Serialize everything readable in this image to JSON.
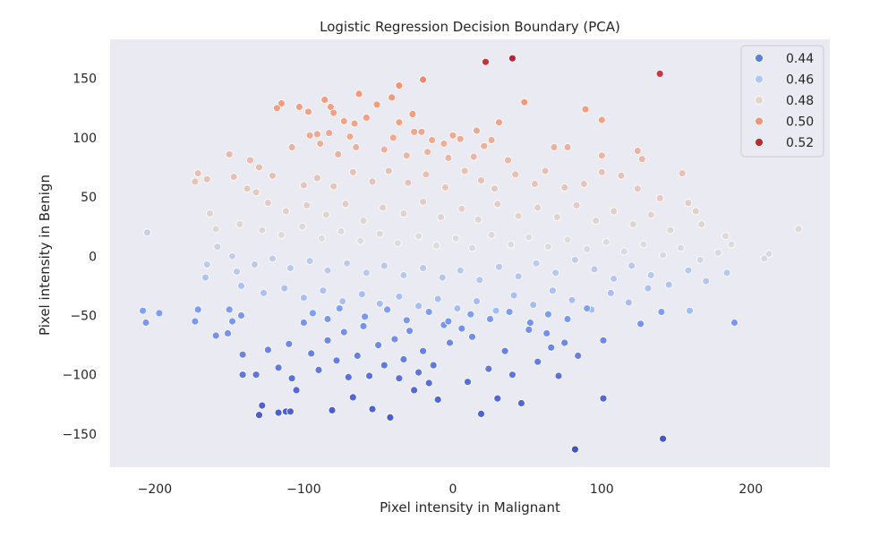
{
  "chart_data": {
    "type": "scatter",
    "title": "Logistic Regression Decision Boundary (PCA)",
    "xlabel": "Pixel intensity in Malignant",
    "ylabel": "Pixel intensity in Benign",
    "xlim": [
      -230,
      253
    ],
    "ylim": [
      -178,
      183
    ],
    "xticks": [
      -200,
      -100,
      0,
      100,
      200
    ],
    "yticks": [
      -150,
      -100,
      -50,
      0,
      50,
      100,
      150
    ],
    "xtick_labels": [
      "−200",
      "−100",
      "0",
      "100",
      "200"
    ],
    "ytick_labels": [
      "−150",
      "−100",
      "−50",
      "0",
      "50",
      "100",
      "150"
    ],
    "grid": false,
    "background": "#eaeaf2",
    "legend": {
      "placement": "top-right",
      "entries": [
        {
          "label": "0.44",
          "color": "#5b7ee0"
        },
        {
          "label": "0.46",
          "color": "#aec8f6"
        },
        {
          "label": "0.48",
          "color": "#e3d6cc"
        },
        {
          "label": "0.50",
          "color": "#e8967a"
        },
        {
          "label": "0.52",
          "color": "#b82b2e"
        }
      ]
    },
    "colormap": "coolwarm",
    "color_range": [
      0.425,
      0.53
    ],
    "points": [
      [
        22,
        164,
        0.522
      ],
      [
        40,
        167,
        0.525
      ],
      [
        139,
        154,
        0.521
      ],
      [
        -36,
        144,
        0.505
      ],
      [
        -20,
        149,
        0.507
      ],
      [
        -63,
        137,
        0.504
      ],
      [
        -115,
        129,
        0.503
      ],
      [
        -118,
        125,
        0.502
      ],
      [
        -103,
        126,
        0.502
      ],
      [
        -97,
        122,
        0.501
      ],
      [
        -86,
        132,
        0.503
      ],
      [
        -82,
        126,
        0.502
      ],
      [
        -80,
        121,
        0.501
      ],
      [
        -51,
        128,
        0.503
      ],
      [
        -41,
        134,
        0.504
      ],
      [
        -58,
        117,
        0.501
      ],
      [
        -73,
        114,
        0.5
      ],
      [
        -27,
        120,
        0.502
      ],
      [
        -36,
        113,
        0.501
      ],
      [
        -66,
        112,
        0.5
      ],
      [
        -83,
        104,
        0.499
      ],
      [
        -96,
        102,
        0.498
      ],
      [
        -91,
        103,
        0.498
      ],
      [
        -69,
        101,
        0.498
      ],
      [
        -40,
        100,
        0.498
      ],
      [
        -26,
        105,
        0.499
      ],
      [
        -21,
        105,
        0.499
      ],
      [
        -14,
        98,
        0.497
      ],
      [
        -6,
        95,
        0.496
      ],
      [
        0,
        102,
        0.498
      ],
      [
        5,
        99,
        0.497
      ],
      [
        16,
        106,
        0.499
      ],
      [
        26,
        98,
        0.497
      ],
      [
        31,
        113,
        0.5
      ],
      [
        48,
        130,
        0.504
      ],
      [
        89,
        124,
        0.503
      ],
      [
        100,
        115,
        0.501
      ],
      [
        -108,
        92,
        0.495
      ],
      [
        -89,
        95,
        0.496
      ],
      [
        -77,
        86,
        0.494
      ],
      [
        -65,
        92,
        0.495
      ],
      [
        -46,
        90,
        0.494
      ],
      [
        -31,
        85,
        0.493
      ],
      [
        -17,
        88,
        0.494
      ],
      [
        -3,
        83,
        0.493
      ],
      [
        14,
        84,
        0.493
      ],
      [
        21,
        93,
        0.495
      ],
      [
        37,
        81,
        0.492
      ],
      [
        68,
        92,
        0.495
      ],
      [
        77,
        92,
        0.495
      ],
      [
        100,
        85,
        0.493
      ],
      [
        124,
        89,
        0.494
      ],
      [
        127,
        82,
        0.492
      ],
      [
        -150,
        86,
        0.492
      ],
      [
        -136,
        81,
        0.491
      ],
      [
        -130,
        75,
        0.49
      ],
      [
        -171,
        70,
        0.489
      ],
      [
        -173,
        63,
        0.488
      ],
      [
        -165,
        65,
        0.488
      ],
      [
        -147,
        67,
        0.488
      ],
      [
        -138,
        57,
        0.486
      ],
      [
        -132,
        54,
        0.486
      ],
      [
        -121,
        68,
        0.489
      ],
      [
        -100,
        60,
        0.487
      ],
      [
        -91,
        66,
        0.488
      ],
      [
        -80,
        59,
        0.487
      ],
      [
        -67,
        71,
        0.489
      ],
      [
        -54,
        63,
        0.488
      ],
      [
        -43,
        72,
        0.489
      ],
      [
        -30,
        62,
        0.488
      ],
      [
        -18,
        69,
        0.489
      ],
      [
        -5,
        58,
        0.486
      ],
      [
        8,
        72,
        0.489
      ],
      [
        19,
        64,
        0.488
      ],
      [
        28,
        57,
        0.486
      ],
      [
        42,
        69,
        0.489
      ],
      [
        55,
        61,
        0.487
      ],
      [
        62,
        72,
        0.489
      ],
      [
        75,
        58,
        0.487
      ],
      [
        88,
        61,
        0.487
      ],
      [
        100,
        71,
        0.489
      ],
      [
        113,
        68,
        0.488
      ],
      [
        124,
        57,
        0.486
      ],
      [
        139,
        49,
        0.485
      ],
      [
        154,
        70,
        0.489
      ],
      [
        158,
        45,
        0.484
      ],
      [
        163,
        38,
        0.483
      ],
      [
        167,
        27,
        0.481
      ],
      [
        -124,
        45,
        0.484
      ],
      [
        -112,
        38,
        0.483
      ],
      [
        -98,
        43,
        0.484
      ],
      [
        -85,
        35,
        0.482
      ],
      [
        -72,
        44,
        0.484
      ],
      [
        -60,
        30,
        0.481
      ],
      [
        -47,
        41,
        0.483
      ],
      [
        -33,
        36,
        0.482
      ],
      [
        -20,
        46,
        0.484
      ],
      [
        -8,
        33,
        0.482
      ],
      [
        6,
        40,
        0.483
      ],
      [
        17,
        31,
        0.481
      ],
      [
        30,
        44,
        0.484
      ],
      [
        44,
        34,
        0.482
      ],
      [
        57,
        41,
        0.483
      ],
      [
        70,
        33,
        0.482
      ],
      [
        83,
        43,
        0.484
      ],
      [
        96,
        30,
        0.481
      ],
      [
        108,
        38,
        0.483
      ],
      [
        121,
        27,
        0.481
      ],
      [
        133,
        35,
        0.482
      ],
      [
        146,
        22,
        0.48
      ],
      [
        183,
        17,
        0.479
      ],
      [
        187,
        10,
        0.478
      ],
      [
        232,
        23,
        0.48
      ],
      [
        212,
        2,
        0.476
      ],
      [
        209,
        -2,
        0.475
      ],
      [
        -163,
        36,
        0.482
      ],
      [
        -159,
        23,
        0.48
      ],
      [
        -143,
        27,
        0.481
      ],
      [
        -128,
        22,
        0.48
      ],
      [
        -115,
        18,
        0.479
      ],
      [
        -101,
        25,
        0.48
      ],
      [
        -88,
        15,
        0.478
      ],
      [
        -75,
        21,
        0.479
      ],
      [
        -62,
        13,
        0.478
      ],
      [
        -49,
        19,
        0.479
      ],
      [
        -37,
        11,
        0.477
      ],
      [
        -23,
        17,
        0.478
      ],
      [
        -11,
        9,
        0.477
      ],
      [
        2,
        15,
        0.478
      ],
      [
        13,
        7,
        0.476
      ],
      [
        26,
        18,
        0.479
      ],
      [
        39,
        10,
        0.477
      ],
      [
        51,
        16,
        0.478
      ],
      [
        64,
        8,
        0.477
      ],
      [
        77,
        14,
        0.478
      ],
      [
        90,
        6,
        0.476
      ],
      [
        103,
        12,
        0.477
      ],
      [
        115,
        4,
        0.476
      ],
      [
        128,
        10,
        0.477
      ],
      [
        141,
        1,
        0.476
      ],
      [
        153,
        7,
        0.476
      ],
      [
        166,
        -3,
        0.474
      ],
      [
        178,
        3,
        0.475
      ],
      [
        -158,
        8,
        0.471
      ],
      [
        -148,
        0,
        0.469
      ],
      [
        -165,
        -7,
        0.467
      ],
      [
        -145,
        -13,
        0.466
      ],
      [
        -133,
        -7,
        0.467
      ],
      [
        -121,
        -2,
        0.468
      ],
      [
        -109,
        -10,
        0.466
      ],
      [
        -96,
        -4,
        0.467
      ],
      [
        -84,
        -12,
        0.466
      ],
      [
        -71,
        -6,
        0.467
      ],
      [
        -58,
        -14,
        0.465
      ],
      [
        -46,
        -8,
        0.466
      ],
      [
        -33,
        -16,
        0.465
      ],
      [
        -20,
        -10,
        0.466
      ],
      [
        -7,
        -18,
        0.464
      ],
      [
        5,
        -12,
        0.465
      ],
      [
        18,
        -20,
        0.464
      ],
      [
        31,
        -9,
        0.466
      ],
      [
        44,
        -17,
        0.464
      ],
      [
        56,
        -6,
        0.467
      ],
      [
        69,
        -14,
        0.465
      ],
      [
        82,
        -3,
        0.468
      ],
      [
        95,
        -11,
        0.466
      ],
      [
        108,
        -19,
        0.464
      ],
      [
        120,
        -8,
        0.466
      ],
      [
        133,
        -16,
        0.465
      ],
      [
        145,
        -24,
        0.463
      ],
      [
        158,
        -12,
        0.465
      ],
      [
        170,
        -21,
        0.464
      ],
      [
        184,
        -14,
        0.465
      ],
      [
        -166,
        -18,
        0.463
      ],
      [
        -142,
        -25,
        0.462
      ],
      [
        -127,
        -31,
        0.461
      ],
      [
        -113,
        -27,
        0.461
      ],
      [
        -100,
        -35,
        0.46
      ],
      [
        -87,
        -29,
        0.461
      ],
      [
        -74,
        -38,
        0.46
      ],
      [
        -61,
        -32,
        0.46
      ],
      [
        -49,
        -40,
        0.459
      ],
      [
        -36,
        -34,
        0.46
      ],
      [
        -23,
        -42,
        0.459
      ],
      [
        -10,
        -36,
        0.46
      ],
      [
        3,
        -44,
        0.459
      ],
      [
        16,
        -38,
        0.459
      ],
      [
        29,
        -46,
        0.458
      ],
      [
        41,
        -33,
        0.46
      ],
      [
        54,
        -41,
        0.459
      ],
      [
        67,
        -29,
        0.461
      ],
      [
        80,
        -37,
        0.46
      ],
      [
        93,
        -45,
        0.458
      ],
      [
        106,
        -31,
        0.46
      ],
      [
        118,
        -39,
        0.459
      ],
      [
        131,
        -27,
        0.461
      ],
      [
        159,
        -46,
        0.458
      ],
      [
        -205,
        20,
        0.47
      ],
      [
        -208,
        -46,
        0.447
      ],
      [
        -206,
        -56,
        0.445
      ],
      [
        -197,
        -48,
        0.446
      ],
      [
        -173,
        -55,
        0.445
      ],
      [
        -171,
        -45,
        0.446
      ],
      [
        -159,
        -67,
        0.443
      ],
      [
        -150,
        -45,
        0.446
      ],
      [
        -148,
        -55,
        0.445
      ],
      [
        -151,
        -65,
        0.444
      ],
      [
        -142,
        -50,
        0.445
      ],
      [
        -141,
        -100,
        0.436
      ],
      [
        -141,
        -83,
        0.44
      ],
      [
        -132,
        -100,
        0.436
      ],
      [
        -128,
        -126,
        0.431
      ],
      [
        -130,
        -134,
        0.43
      ],
      [
        -117,
        -132,
        0.43
      ],
      [
        -112,
        -131,
        0.43
      ],
      [
        -109,
        -131,
        0.43
      ],
      [
        -124,
        -79,
        0.44
      ],
      [
        -117,
        -94,
        0.437
      ],
      [
        -110,
        -74,
        0.441
      ],
      [
        -108,
        -103,
        0.435
      ],
      [
        -105,
        -113,
        0.433
      ],
      [
        -100,
        -56,
        0.444
      ],
      [
        -95,
        -82,
        0.439
      ],
      [
        -90,
        -96,
        0.437
      ],
      [
        -84,
        -71,
        0.441
      ],
      [
        -81,
        -130,
        0.43
      ],
      [
        -78,
        -88,
        0.438
      ],
      [
        -73,
        -64,
        0.443
      ],
      [
        -70,
        -102,
        0.435
      ],
      [
        -67,
        -119,
        0.432
      ],
      [
        -64,
        -84,
        0.439
      ],
      [
        -60,
        -59,
        0.444
      ],
      [
        -56,
        -101,
        0.435
      ],
      [
        -54,
        -129,
        0.431
      ],
      [
        -50,
        -75,
        0.441
      ],
      [
        -46,
        -92,
        0.437
      ],
      [
        -42,
        -136,
        0.43
      ],
      [
        -39,
        -70,
        0.442
      ],
      [
        -36,
        -103,
        0.435
      ],
      [
        -33,
        -87,
        0.438
      ],
      [
        -29,
        -63,
        0.443
      ],
      [
        -26,
        -113,
        0.433
      ],
      [
        -23,
        -98,
        0.436
      ],
      [
        -20,
        -80,
        0.439
      ],
      [
        -16,
        -107,
        0.434
      ],
      [
        -13,
        -92,
        0.437
      ],
      [
        -10,
        -121,
        0.432
      ],
      [
        -6,
        -58,
        0.444
      ],
      [
        -2,
        -73,
        0.441
      ],
      [
        6,
        -61,
        0.443
      ],
      [
        10,
        -106,
        0.434
      ],
      [
        13,
        -68,
        0.442
      ],
      [
        19,
        -133,
        0.431
      ],
      [
        24,
        -95,
        0.437
      ],
      [
        30,
        -120,
        0.432
      ],
      [
        35,
        -80,
        0.439
      ],
      [
        40,
        -100,
        0.436
      ],
      [
        46,
        -124,
        0.432
      ],
      [
        51,
        -62,
        0.443
      ],
      [
        57,
        -89,
        0.438
      ],
      [
        63,
        -65,
        0.443
      ],
      [
        66,
        -77,
        0.44
      ],
      [
        71,
        -101,
        0.435
      ],
      [
        75,
        -73,
        0.441
      ],
      [
        82,
        -163,
        0.427
      ],
      [
        84,
        -84,
        0.439
      ],
      [
        101,
        -120,
        0.432
      ],
      [
        101,
        -71,
        0.441
      ],
      [
        126,
        -57,
        0.444
      ],
      [
        140,
        -47,
        0.446
      ],
      [
        141,
        -154,
        0.428
      ],
      [
        189,
        -56,
        0.445
      ],
      [
        -94,
        -48,
        0.446
      ],
      [
        -84,
        -53,
        0.445
      ],
      [
        -76,
        -44,
        0.447
      ],
      [
        -59,
        -51,
        0.445
      ],
      [
        -44,
        -45,
        0.446
      ],
      [
        -31,
        -54,
        0.445
      ],
      [
        -16,
        -47,
        0.446
      ],
      [
        -3,
        -55,
        0.445
      ],
      [
        12,
        -49,
        0.446
      ],
      [
        25,
        -53,
        0.445
      ],
      [
        38,
        -47,
        0.446
      ],
      [
        52,
        -56,
        0.444
      ],
      [
        64,
        -49,
        0.446
      ],
      [
        77,
        -53,
        0.445
      ],
      [
        90,
        -44,
        0.447
      ]
    ]
  }
}
